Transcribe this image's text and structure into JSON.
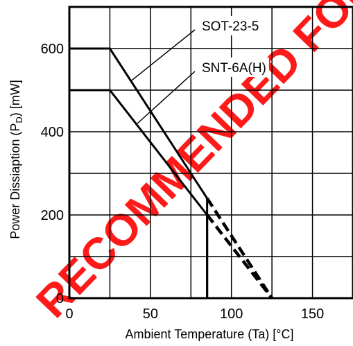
{
  "chart_data": {
    "type": "line",
    "xlabel": "Ambient Temperature (Ta) [°C]",
    "ylabel_main": "Power Dissiaption (P",
    "ylabel_sub": "D",
    "ylabel_end": ") [mW]",
    "xlim": [
      0,
      175
    ],
    "ylim": [
      0,
      700
    ],
    "x_ticks": [
      0,
      50,
      100,
      150
    ],
    "y_ticks": [
      0,
      200,
      400,
      600
    ],
    "x_grid_step": 25,
    "y_grid_step": 100,
    "grid": true,
    "series": [
      {
        "name": "SOT-23-5",
        "points": [
          [
            0,
            600
          ],
          [
            25,
            600
          ],
          [
            85,
            240
          ]
        ],
        "dashed_points": [
          [
            85,
            240
          ],
          [
            125,
            0
          ]
        ],
        "drop_points": [
          [
            85,
            240
          ],
          [
            85,
            0
          ]
        ]
      },
      {
        "name": "SNT-6A(H)",
        "points": [
          [
            0,
            500
          ],
          [
            25,
            500
          ],
          [
            85,
            200
          ]
        ],
        "dashed_points": [
          [
            85,
            200
          ],
          [
            125,
            0
          ]
        ],
        "drop_points": [
          [
            85,
            200
          ],
          [
            85,
            0
          ]
        ]
      }
    ],
    "annotations": [
      {
        "text": "SOT-23-5",
        "label_at": [
          80,
          655
        ],
        "points_to": [
          38,
          522
        ]
      },
      {
        "text": "SNT-6A(H)",
        "label_at": [
          80,
          555
        ],
        "points_to": [
          42,
          420
        ]
      }
    ]
  },
  "watermark": {
    "text": "RECOMMENDED FOR",
    "color": "#ff1a1a"
  }
}
